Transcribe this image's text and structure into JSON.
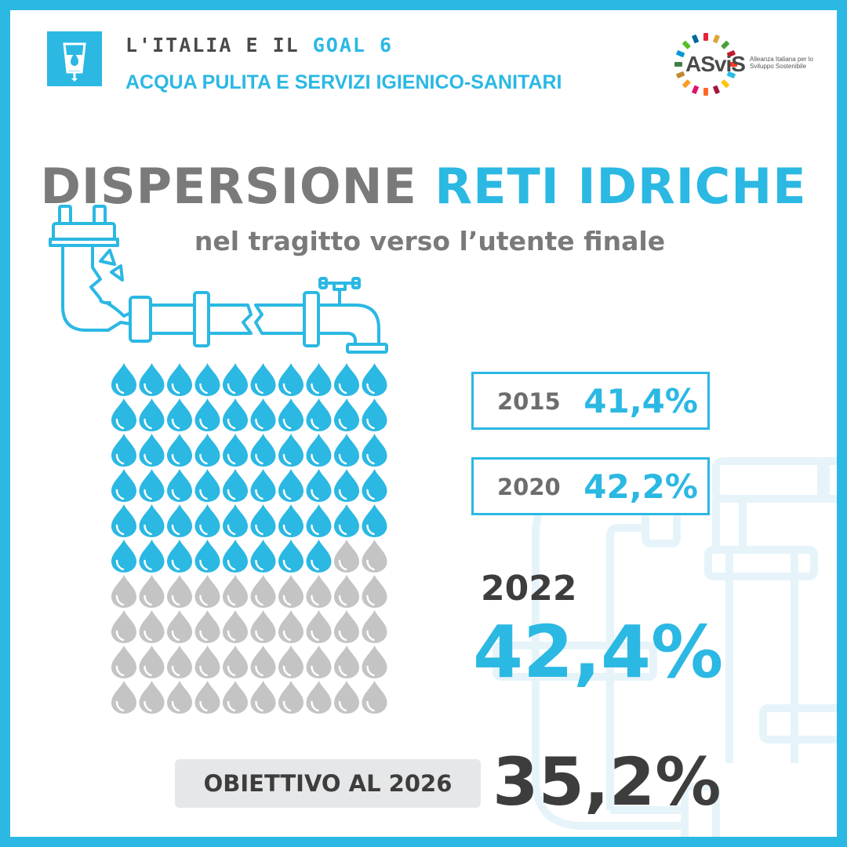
{
  "header": {
    "line1_prefix": "L'ITALIA E IL",
    "line1_goal": "GOAL 6",
    "line2": "ACQUA PULITA E SERVIZI IGIENICO-SANITARI",
    "goal_icon": "water-glass-icon"
  },
  "logo": {
    "name": "ASviS",
    "tagline": "Alleanza Italiana per lo Sviluppo Sostenibile"
  },
  "title": {
    "part1": "DISPERSIONE",
    "part2": "RETI IDRICHE",
    "subtitle": "nel tragitto verso l’utente finale"
  },
  "icons": {
    "pipe": "leaking-pipe-icon",
    "background": "pipes-icon",
    "drop": "water-drop-icon"
  },
  "chart_data": {
    "type": "pictogram",
    "units_total": 100,
    "units_filled": 58,
    "columns": 10,
    "rows": 10
  },
  "stats": [
    {
      "year": "2015",
      "value": "41,4%"
    },
    {
      "year": "2020",
      "value": "42,2%"
    }
  ],
  "highlight": {
    "year": "2022",
    "value": "42,4%"
  },
  "target": {
    "label": "OBIETTIVO AL 2026",
    "value": "35,2%"
  },
  "colors": {
    "accent": "#2bb8e3",
    "gray_text": "#7a7a7a",
    "dark_text": "#3d3d3d",
    "drop_filled": "#2bb8e3",
    "drop_empty": "#c4c4c4"
  }
}
